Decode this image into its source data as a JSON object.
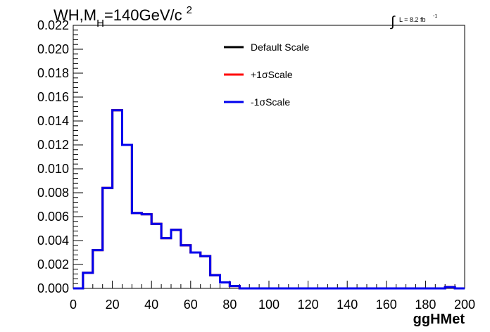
{
  "chart_data": {
    "type": "histogram",
    "title_parts": {
      "a": "WH,M",
      "sub": "H",
      "b": "=140GeV/c",
      "sup": "2"
    },
    "lumi": {
      "label": "L = 8.2 fb",
      "sup": "-1"
    },
    "xlabel": "ggHMet",
    "ylabel": "",
    "xlim": [
      0,
      200
    ],
    "ylim": [
      0,
      0.022
    ],
    "x_ticks": [
      0,
      20,
      40,
      60,
      80,
      100,
      120,
      140,
      160,
      180,
      200
    ],
    "y_ticks": [
      "0.000",
      "0.002",
      "0.004",
      "0.006",
      "0.008",
      "0.010",
      "0.012",
      "0.014",
      "0.016",
      "0.018",
      "0.020",
      "0.022"
    ],
    "bin_width": 5,
    "bin_edges_start": 0,
    "legend_position": "top-center",
    "series": [
      {
        "name": "Default Scale",
        "color": "#000000",
        "values": [
          0,
          0.0013,
          0.0032,
          0.0084,
          0.0149,
          0.012,
          0.0063,
          0.0062,
          0.0054,
          0.0042,
          0.0049,
          0.0036,
          0.003,
          0.0027,
          0.0011,
          0.0005,
          0.0002,
          0,
          0,
          0,
          0,
          0,
          0,
          0,
          0,
          0,
          0,
          0,
          0,
          0,
          0,
          0,
          0,
          0,
          0,
          0,
          0,
          0,
          0.0001,
          0
        ]
      },
      {
        "name": "+1σScale",
        "color": "#ff0000",
        "values": [
          0,
          0.0013,
          0.0032,
          0.0084,
          0.0149,
          0.012,
          0.0063,
          0.0062,
          0.0054,
          0.0042,
          0.0049,
          0.0036,
          0.003,
          0.0027,
          0.0011,
          0.0005,
          0.0002,
          0,
          0,
          0,
          0,
          0,
          0,
          0,
          0,
          0,
          0,
          0,
          0,
          0,
          0,
          0,
          0,
          0,
          0,
          0,
          0,
          0,
          0.0001,
          0
        ]
      },
      {
        "name": "-1σScale",
        "color": "#0000ee",
        "values": [
          0,
          0.0013,
          0.0032,
          0.0084,
          0.0149,
          0.012,
          0.0063,
          0.0062,
          0.0054,
          0.0042,
          0.0049,
          0.0036,
          0.003,
          0.0027,
          0.0011,
          0.0005,
          0.0002,
          0,
          0,
          0,
          0,
          0,
          0,
          0,
          0,
          0,
          0,
          0,
          0,
          0,
          0,
          0,
          0,
          0,
          0,
          0,
          0,
          0,
          0.0001,
          0
        ]
      }
    ]
  }
}
